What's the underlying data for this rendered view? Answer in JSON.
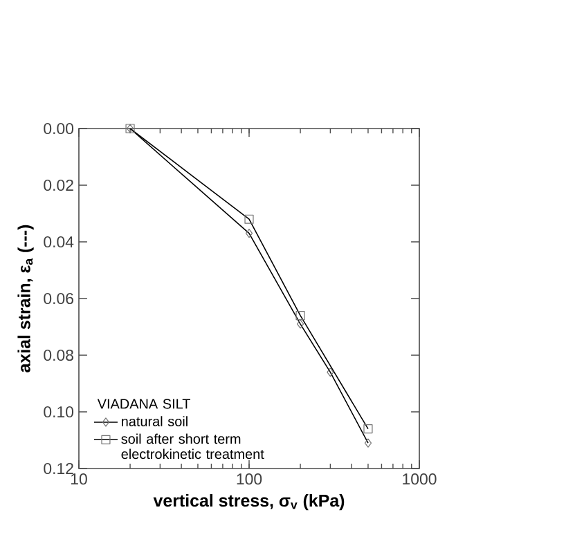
{
  "chart_data": {
    "type": "line",
    "xlabel": "vertical stress, σ$_{v}$ (kPa)",
    "ylabel": "axial strain, ε$_{a}$ (---)",
    "legend_title": "VIADANA SILT",
    "log": "x",
    "xlim": [
      10,
      1000
    ],
    "xticks": [
      10,
      100,
      1000
    ],
    "ylim": [
      0.12,
      0.0
    ],
    "yticks": [
      {
        "value": 0,
        "label": "0.00"
      },
      {
        "value": 0.02,
        "label": "0.02"
      },
      {
        "value": 0.04,
        "label": "0.04"
      },
      {
        "value": 0.06,
        "label": "0.06"
      },
      {
        "value": 0.08,
        "label": "0.08"
      },
      {
        "value": 0.1,
        "label": "0.10"
      },
      {
        "value": 0.12,
        "label": "0.12"
      }
    ],
    "grid": false,
    "legend": "bottom left",
    "line_style": "solid",
    "series": [
      {
        "name": "natural soil",
        "color": "#000000",
        "marker": "diamond",
        "x": [
          20,
          100,
          200,
          300,
          500
        ],
        "values": [
          0.0,
          0.037,
          0.069,
          0.086,
          0.111
        ]
      },
      {
        "name": "soil after short term electrokinetic treatment",
        "color": "#000000",
        "marker": "square",
        "x": [
          20,
          100,
          200,
          500
        ],
        "values": [
          0.0,
          0.032,
          0.066,
          0.106
        ]
      }
    ]
  }
}
